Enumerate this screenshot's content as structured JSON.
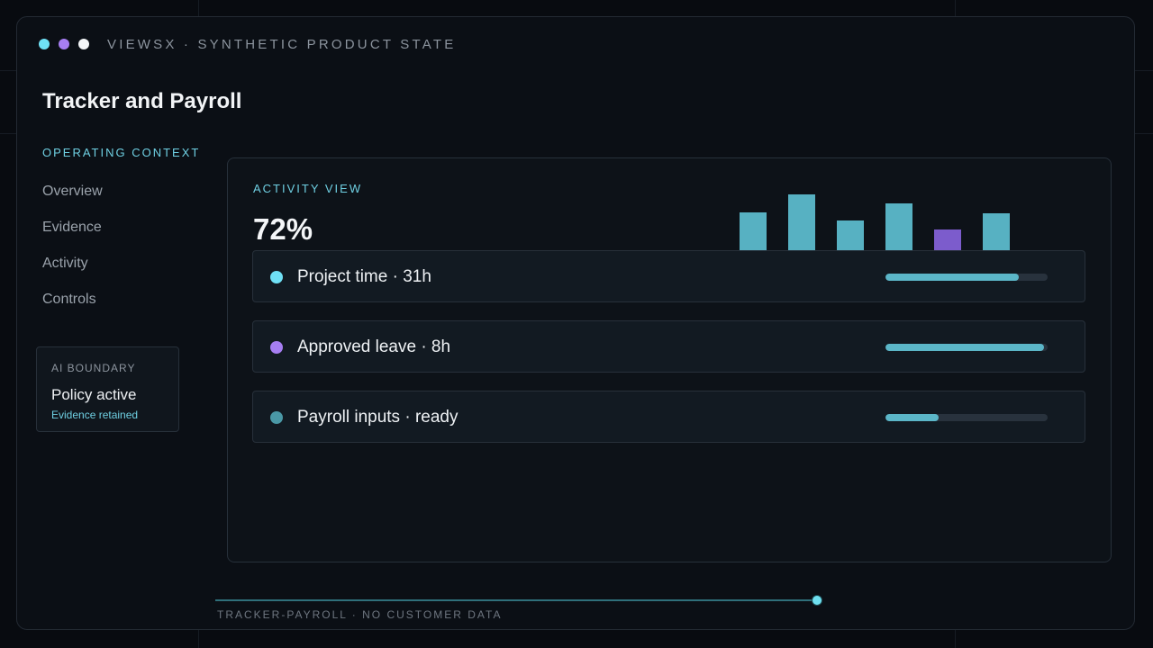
{
  "colors": {
    "accent": "#6fd0e3",
    "dot_cyan": "#6fe0f5",
    "dot_purple": "#a67ef2",
    "dot_white": "#f4f6f8",
    "bar_teal": "#57b1c2",
    "bar_purple": "#7c5ccc",
    "progress_fill": "#5bb6c8",
    "status_teal": "#4a98a6"
  },
  "window": {
    "brand": "VIEWSX · SYNTHETIC PRODUCT STATE"
  },
  "page": {
    "title": "Tracker and Payroll"
  },
  "sidebar": {
    "section_label": "OPERATING CONTEXT",
    "items": [
      {
        "label": "Overview"
      },
      {
        "label": "Evidence"
      },
      {
        "label": "Activity"
      },
      {
        "label": "Controls"
      }
    ],
    "boundary": {
      "label": "AI BOUNDARY",
      "title": "Policy active",
      "subtitle": "Evidence retained"
    }
  },
  "panel": {
    "label": "ACTIVITY VIEW",
    "kpi": "72%",
    "bars": [
      {
        "level": 0.68,
        "color": "teal"
      },
      {
        "level": 1.0,
        "color": "teal"
      },
      {
        "level": 0.53,
        "color": "teal"
      },
      {
        "level": 0.84,
        "color": "teal"
      },
      {
        "level": 0.37,
        "color": "purple"
      },
      {
        "level": 0.66,
        "color": "teal"
      }
    ],
    "rows": [
      {
        "label": "Project time · 31h",
        "dot": "cyan",
        "progress": 0.82
      },
      {
        "label": "Approved leave · 8h",
        "dot": "purple",
        "progress": 0.98
      },
      {
        "label": "Payroll inputs · ready",
        "dot": "teal",
        "progress": 0.33
      }
    ]
  },
  "footer": {
    "text": "TRACKER-PAYROLL · NO CUSTOMER DATA",
    "timeline_progress": 1.0
  }
}
